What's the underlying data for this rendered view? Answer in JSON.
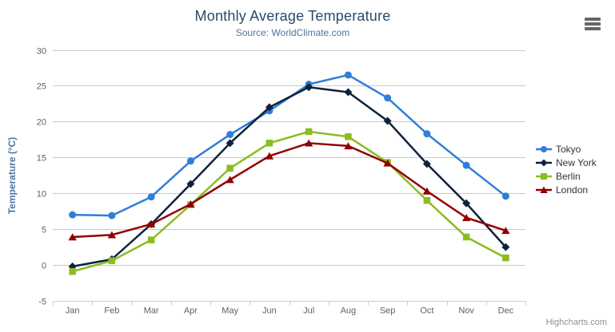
{
  "header": {
    "title": "Monthly Average Temperature",
    "subtitle": "Source: WorldClimate.com"
  },
  "credits": "Highcharts.com",
  "export_button": {
    "icon": "hamburger-icon"
  },
  "theme": {
    "background": "#FFFFFF",
    "title_color": "#274B6D",
    "subtitle_color": "#4D759E",
    "axis_title_color": "#4D759E",
    "axis_label_color": "#606060",
    "grid_color": "#C9C9C9",
    "axis_line_color": "#C0D0E0",
    "legend_text_color": "#333333",
    "credits_color": "#909090",
    "export_icon_color": "#666666"
  },
  "chart_data": {
    "type": "line",
    "title": "Monthly Average Temperature",
    "subtitle": "Source: WorldClimate.com",
    "xlabel": "",
    "ylabel": "Temperature (°C)",
    "ylim": [
      -5,
      30
    ],
    "ytick_step": 5,
    "yticks": [
      -5,
      0,
      5,
      10,
      15,
      20,
      25,
      30
    ],
    "grid": true,
    "legend_position": "right-middle",
    "categories": [
      "Jan",
      "Feb",
      "Mar",
      "Apr",
      "May",
      "Jun",
      "Jul",
      "Aug",
      "Sep",
      "Oct",
      "Nov",
      "Dec"
    ],
    "series": [
      {
        "name": "Tokyo",
        "color": "#2F7ED8",
        "marker": "circle",
        "values": [
          7.0,
          6.9,
          9.5,
          14.5,
          18.2,
          21.5,
          25.2,
          26.5,
          23.3,
          18.3,
          13.9,
          9.6
        ]
      },
      {
        "name": "New York",
        "color": "#0D233A",
        "marker": "diamond",
        "values": [
          -0.2,
          0.8,
          5.7,
          11.3,
          17.0,
          22.0,
          24.8,
          24.1,
          20.1,
          14.1,
          8.6,
          2.5
        ]
      },
      {
        "name": "Berlin",
        "color": "#8BBC21",
        "marker": "square",
        "values": [
          -0.9,
          0.6,
          3.5,
          8.4,
          13.5,
          17.0,
          18.6,
          17.9,
          14.3,
          9.0,
          3.9,
          1.0
        ]
      },
      {
        "name": "London",
        "color": "#910000",
        "marker": "triangle",
        "values": [
          3.9,
          4.2,
          5.7,
          8.5,
          11.9,
          15.2,
          17.0,
          16.6,
          14.2,
          10.3,
          6.6,
          4.8
        ]
      }
    ]
  }
}
